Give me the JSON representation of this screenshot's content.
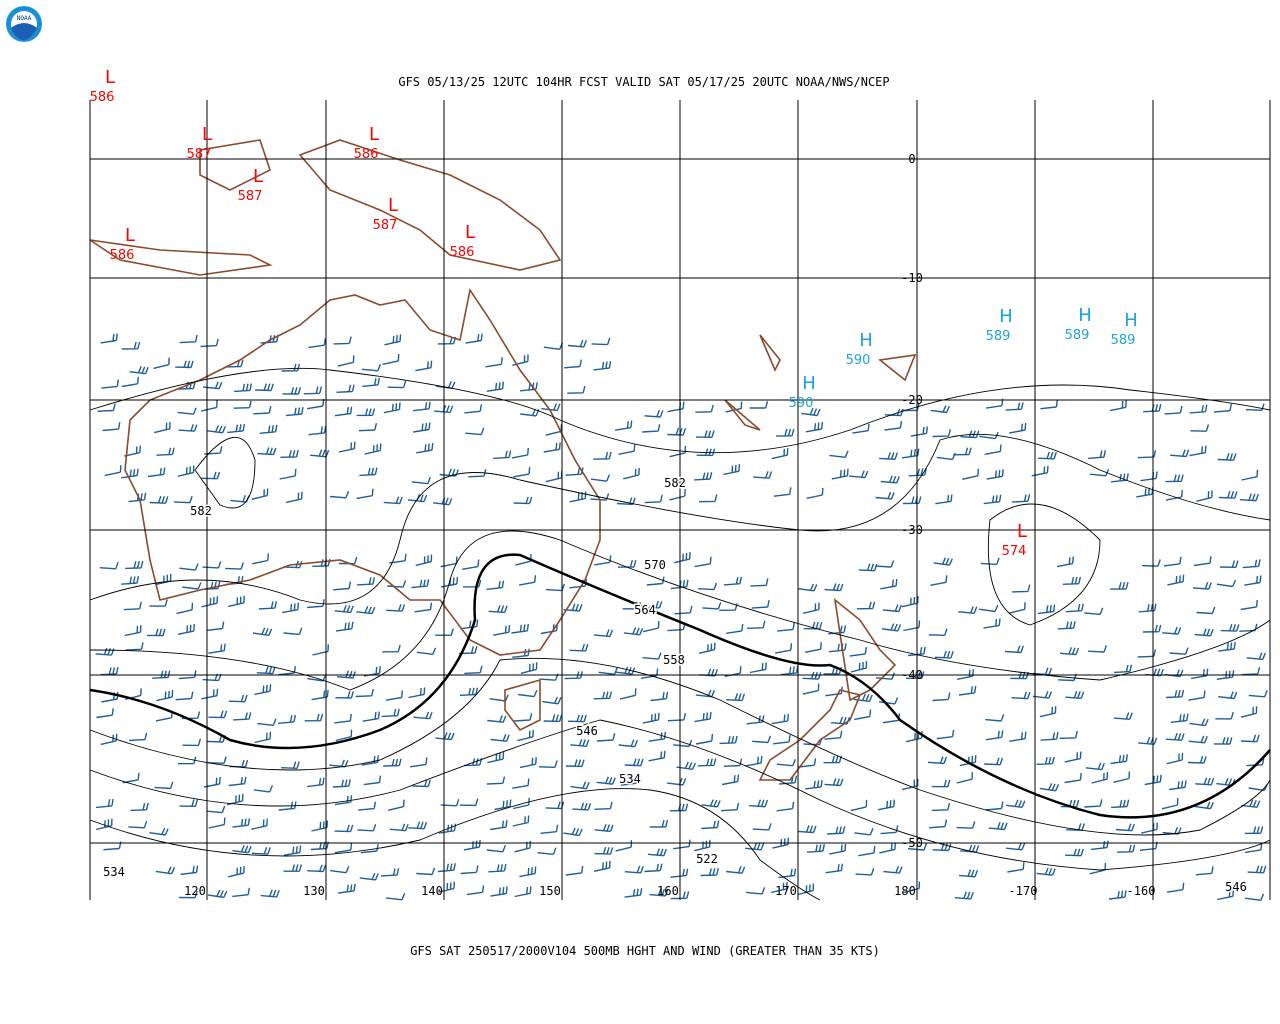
{
  "header": {
    "title": "GFS 05/13/25 12UTC 104HR FCST VALID SAT 05/17/25 20UTC NOAA/NWS/NCEP"
  },
  "logo": "NOAA",
  "map": {
    "lat_labels": [
      "0",
      "-10",
      "-20",
      "-30",
      "-40",
      "-50"
    ],
    "lon_labels": [
      "120",
      "130",
      "140",
      "150",
      "160",
      "170",
      "180",
      "-170",
      "-160"
    ],
    "centers": [
      {
        "symbol": "L",
        "value": "586"
      },
      {
        "symbol": "L",
        "value": "587"
      },
      {
        "symbol": "L",
        "value": "587"
      },
      {
        "symbol": "L",
        "value": "586"
      },
      {
        "symbol": "L",
        "value": "587"
      },
      {
        "symbol": "L",
        "value": "586"
      },
      {
        "symbol": "L",
        "value": "586"
      },
      {
        "symbol": "H",
        "value": "590"
      },
      {
        "symbol": "H",
        "value": "590"
      },
      {
        "symbol": "H",
        "value": "589"
      },
      {
        "symbol": "H",
        "value": "589"
      },
      {
        "symbol": "H",
        "value": "589"
      },
      {
        "symbol": "L",
        "value": "574"
      }
    ],
    "contour_labels": [
      "582",
      "582",
      "570",
      "564",
      "558",
      "546",
      "534",
      "522",
      "534",
      "546"
    ]
  },
  "footer": {
    "caption": "GFS SAT 250517/2000V104 500MB HGHT AND WIND (GREATER THAN 35 KTS)"
  }
}
